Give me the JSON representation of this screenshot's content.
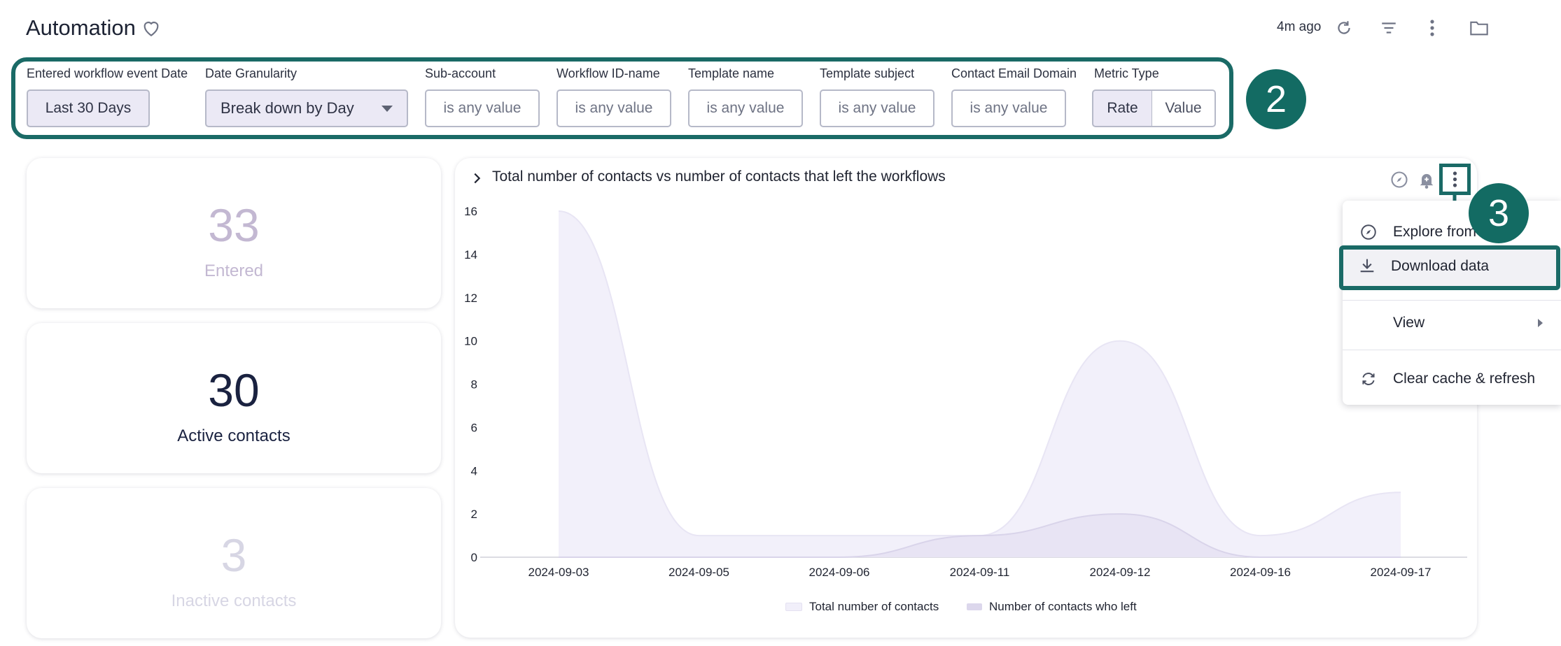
{
  "header": {
    "title": "Automation",
    "updated": "4m ago"
  },
  "filters": [
    {
      "label": "Entered workflow event Date",
      "value": "Last 30 Days"
    },
    {
      "label": "Date Granularity",
      "value": "Break down by Day"
    },
    {
      "label": "Sub-account",
      "value": "is any value"
    },
    {
      "label": "Workflow ID-name",
      "value": "is any value"
    },
    {
      "label": "Template name",
      "value": "is any value"
    },
    {
      "label": "Template subject",
      "value": "is any value"
    },
    {
      "label": "Contact Email Domain",
      "value": "is any value"
    }
  ],
  "metric_type": {
    "label": "Metric Type",
    "options": [
      "Rate",
      "Value"
    ],
    "selected": "Rate"
  },
  "badges": {
    "two": "2",
    "three": "3"
  },
  "kpis": [
    {
      "value": "33",
      "label": "Entered",
      "color": "#c3b8d2"
    },
    {
      "value": "30",
      "label": "Active contacts",
      "color": "#1a2240"
    },
    {
      "value": "3",
      "label": "Inactive contacts",
      "color": "#d7d6e4"
    }
  ],
  "chart": {
    "title": "Total number of contacts vs number of contacts that left the workflows"
  },
  "chart_data": {
    "type": "area",
    "title": "Total number of contacts vs number of contacts that left the workflows",
    "categories": [
      "2024-09-03",
      "2024-09-05",
      "2024-09-06",
      "2024-09-11",
      "2024-09-12",
      "2024-09-16",
      "2024-09-17"
    ],
    "series": [
      {
        "name": "Total number of contacts",
        "values": [
          16,
          1,
          1,
          1,
          10,
          1,
          3
        ]
      },
      {
        "name": "Number of contacts who left",
        "values": [
          0,
          0,
          0,
          1,
          2,
          0,
          0
        ]
      }
    ],
    "ylim": [
      0,
      16
    ],
    "yticks": [
      0,
      2,
      4,
      6,
      8,
      10,
      12,
      14,
      16
    ],
    "legend_position": "bottom"
  },
  "menu": {
    "items": [
      {
        "label": "Explore from"
      },
      {
        "label": "Download data"
      },
      {
        "label": "View"
      },
      {
        "label": "Clear cache & refresh"
      }
    ]
  },
  "colors": {
    "accent_outline": "#1a6a66",
    "badge": "#136b63",
    "area_total": "#f1effa",
    "area_left": "#e6e2f2"
  }
}
